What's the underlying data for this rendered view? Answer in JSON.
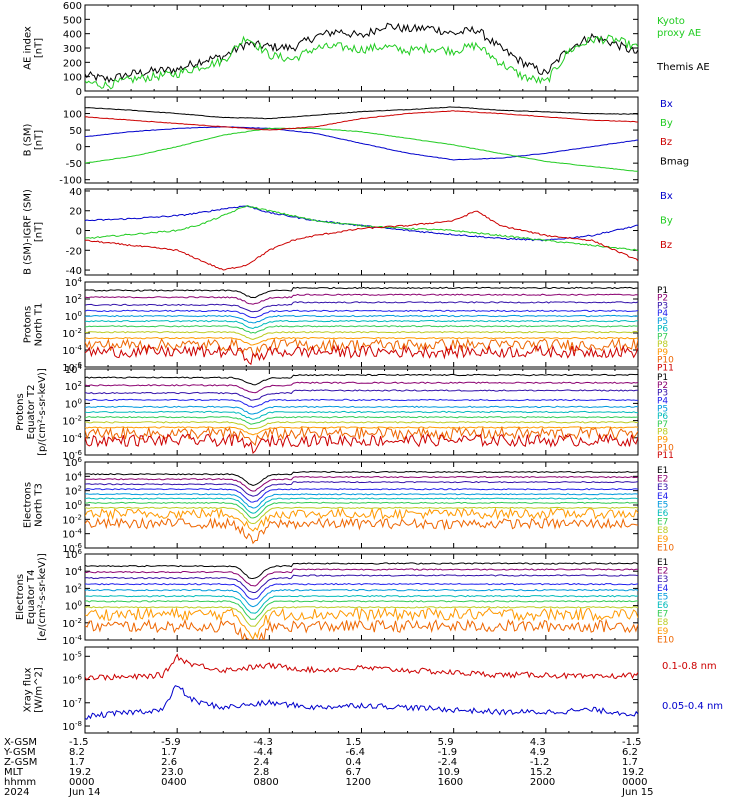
{
  "colors": {
    "black": "#000000",
    "green": "#22cc22",
    "blue": "#0000cc",
    "red": "#cc0000",
    "ch": [
      "#000000",
      "#8b0070",
      "#3311aa",
      "#2222ee",
      "#0099dd",
      "#00bbbb",
      "#33cc55",
      "#bbcc22",
      "#ff9900",
      "#ee6600",
      "#cc0000",
      "#880000"
    ]
  },
  "chart_data": [
    {
      "type": "line",
      "panel": "ae",
      "ylabel": [
        "AE index",
        "[nT]"
      ],
      "ylim": [
        0,
        600
      ],
      "ticks": [
        "0",
        "100",
        "200",
        "300",
        "400",
        "500",
        "600"
      ],
      "legend": [
        {
          "text": "Kyoto",
          "color": "green"
        },
        {
          "text": "proxy AE",
          "color": "green"
        },
        {
          "text": "Themis AE",
          "color": "black"
        }
      ],
      "series": [
        {
          "color": "black",
          "x": [
            0,
            1,
            2,
            3,
            4,
            5,
            6,
            7,
            8,
            9,
            10,
            11,
            12,
            13,
            14,
            15,
            16,
            17,
            18,
            19,
            20,
            21,
            22,
            23,
            24
          ],
          "y": [
            110,
            80,
            120,
            140,
            150,
            210,
            240,
            330,
            310,
            300,
            380,
            420,
            380,
            460,
            430,
            440,
            400,
            430,
            300,
            200,
            120,
            300,
            380,
            330,
            260
          ]
        },
        {
          "color": "green",
          "x": [
            0,
            1,
            2,
            3,
            4,
            5,
            6,
            7,
            8,
            9,
            10,
            11,
            12,
            13,
            14,
            15,
            16,
            17,
            18,
            19,
            20,
            21,
            22,
            23,
            24
          ],
          "y": [
            60,
            40,
            80,
            100,
            120,
            170,
            210,
            380,
            250,
            220,
            300,
            310,
            290,
            310,
            280,
            300,
            280,
            320,
            200,
            100,
            60,
            280,
            360,
            360,
            300
          ]
        }
      ]
    },
    {
      "type": "line",
      "panel": "bsm",
      "ylabel": [
        "B (SM)",
        "[nT]"
      ],
      "ylim": [
        -110,
        150
      ],
      "tickvals": [
        -100,
        -50,
        0,
        50,
        100
      ],
      "ticks": [
        "-100",
        "-50",
        "0",
        "50",
        "100"
      ],
      "legend": [
        {
          "text": "Bx",
          "color": "blue"
        },
        {
          "text": "By",
          "color": "green"
        },
        {
          "text": "Bz",
          "color": "red"
        },
        {
          "text": "Bmag",
          "color": "black"
        }
      ],
      "series": [
        {
          "color": "black",
          "x": [
            0,
            2,
            4,
            6,
            8,
            10,
            12,
            14,
            16,
            18,
            20,
            22,
            24
          ],
          "y": [
            118,
            110,
            100,
            88,
            85,
            95,
            106,
            112,
            120,
            110,
            105,
            100,
            98
          ]
        },
        {
          "color": "blue",
          "x": [
            0,
            2,
            4,
            6,
            8,
            10,
            12,
            14,
            16,
            18,
            20,
            22,
            24
          ],
          "y": [
            30,
            45,
            55,
            60,
            55,
            40,
            10,
            -20,
            -40,
            -35,
            -20,
            0,
            20
          ]
        },
        {
          "color": "green",
          "x": [
            0,
            2,
            4,
            6,
            8,
            10,
            12,
            14,
            16,
            18,
            20,
            22,
            24
          ],
          "y": [
            -50,
            -30,
            0,
            35,
            55,
            55,
            45,
            25,
            5,
            -20,
            -45,
            -60,
            -75
          ]
        },
        {
          "color": "red",
          "x": [
            0,
            2,
            4,
            6,
            8,
            10,
            12,
            14,
            16,
            18,
            20,
            22,
            24
          ],
          "y": [
            90,
            80,
            70,
            60,
            50,
            60,
            85,
            100,
            108,
            100,
            90,
            80,
            75
          ]
        }
      ]
    },
    {
      "type": "line",
      "panel": "bresid",
      "ylabel": [
        "B (SM)-IGRF (SM)",
        "[nT]"
      ],
      "ylim": [
        -45,
        42
      ],
      "tickvals": [
        -40,
        -20,
        0,
        20,
        40
      ],
      "ticks": [
        "-40",
        "-20",
        "0",
        "20",
        "40"
      ],
      "legend": [
        {
          "text": "Bx",
          "color": "blue"
        },
        {
          "text": "By",
          "color": "green"
        },
        {
          "text": "Bz",
          "color": "red"
        }
      ],
      "series": [
        {
          "color": "blue",
          "x": [
            0,
            2,
            4,
            5,
            6,
            7,
            8,
            9,
            10,
            12,
            14,
            16,
            18,
            20,
            22,
            24
          ],
          "y": [
            10,
            12,
            15,
            18,
            22,
            25,
            18,
            14,
            10,
            5,
            0,
            -4,
            -8,
            -10,
            -5,
            5
          ]
        },
        {
          "color": "green",
          "x": [
            0,
            2,
            4,
            5,
            6,
            7,
            8,
            9,
            10,
            12,
            14,
            16,
            18,
            20,
            22,
            24
          ],
          "y": [
            -8,
            -4,
            0,
            6,
            15,
            25,
            20,
            15,
            10,
            5,
            2,
            0,
            -5,
            -10,
            -15,
            -20
          ]
        },
        {
          "color": "red",
          "x": [
            0,
            2,
            4,
            5,
            6,
            7,
            8,
            9,
            10,
            12,
            14,
            16,
            17,
            18,
            20,
            22,
            24
          ],
          "y": [
            -10,
            -15,
            -20,
            -30,
            -40,
            -35,
            -20,
            -10,
            -5,
            2,
            5,
            10,
            20,
            5,
            -5,
            -10,
            -30
          ]
        }
      ]
    },
    {
      "type": "line",
      "panel": "ptn",
      "ylabel": [
        "Protons",
        "North T1"
      ],
      "ylog": [
        -6,
        4
      ],
      "ticks": [
        "10^4",
        "10^2",
        "10^0",
        "10^-2",
        "10^-4",
        "10^-6"
      ],
      "channels": [
        "P1",
        "P2",
        "P3",
        "P4",
        "P5",
        "P6",
        "P7",
        "P8",
        "P9",
        "P10",
        "P11"
      ],
      "levels": [
        3,
        2.2,
        1.3,
        0.6,
        0,
        -0.6,
        -1.2,
        -1.9,
        -2.6,
        -3.4,
        -4.2
      ]
    },
    {
      "type": "line",
      "panel": "pte",
      "ylabel": [
        "Protons",
        "Equator T2",
        "[p/(cm²-s-sr-keV)]"
      ],
      "ylog": [
        -6,
        4
      ],
      "ticks": [
        "10^4",
        "10^2",
        "10^0",
        "10^-2",
        "10^-4",
        "10^-6"
      ],
      "channels": [
        "P1",
        "P2",
        "P3",
        "P4",
        "P5",
        "P6",
        "P7",
        "P8",
        "P9",
        "P10",
        "P11"
      ],
      "levels": [
        3,
        2.1,
        1.2,
        0.4,
        -0.4,
        -1.0,
        -1.6,
        -2.2,
        -2.8,
        -3.5,
        -4.3
      ]
    },
    {
      "type": "line",
      "panel": "etn",
      "ylabel": [
        "Electrons",
        "North T3"
      ],
      "ylog": [
        -6,
        6
      ],
      "ticks": [
        "10^6",
        "10^4",
        "10^2",
        "10^0",
        "10^-2",
        "10^-4",
        "10^-6"
      ],
      "channels": [
        "E1",
        "E2",
        "E3",
        "E4",
        "E5",
        "E6",
        "E7",
        "E8",
        "E9",
        "E10"
      ],
      "levels": [
        4.3,
        3.6,
        2.9,
        2.2,
        1.5,
        0.9,
        0.3,
        -0.4,
        -1.2,
        -2.6
      ]
    },
    {
      "type": "line",
      "panel": "ete",
      "ylabel": [
        "Electrons",
        "Equator T4",
        "[e/(cm²-s-sr-keV)]"
      ],
      "ylog": [
        -4,
        6
      ],
      "ticks": [
        "10^6",
        "10^4",
        "10^2",
        "10^0",
        "10^-2",
        "10^-4"
      ],
      "channels": [
        "E1",
        "E2",
        "E3",
        "E4",
        "E5",
        "E6",
        "E7",
        "E8",
        "E9",
        "E10"
      ],
      "levels": [
        4.6,
        3.9,
        3.2,
        2.5,
        1.8,
        1.1,
        0.5,
        -0.2,
        -1.0,
        -2.4
      ]
    },
    {
      "type": "line",
      "panel": "xray",
      "ylabel": [
        "Xray flux",
        "[W/m^2]"
      ],
      "ylog": [
        -8.3,
        -4.6
      ],
      "ticks": [
        "10^-5",
        "10^-6",
        "10^-7",
        "10^-8"
      ],
      "legend": [
        {
          "text": "0.1-0.8 nm",
          "color": "red"
        },
        {
          "text": "0.05-0.4 nm",
          "color": "blue"
        }
      ],
      "series": [
        {
          "color": "red",
          "x": [
            0,
            2,
            3.4,
            4,
            4.5,
            5,
            6,
            8,
            10,
            12,
            14,
            16,
            18,
            20,
            22,
            24
          ],
          "y": [
            -5.9,
            -5.9,
            -5.8,
            -5.0,
            -5.3,
            -5.4,
            -5.6,
            -5.4,
            -5.6,
            -5.5,
            -5.6,
            -5.7,
            -5.8,
            -5.8,
            -5.9,
            -5.8
          ]
        },
        {
          "color": "blue",
          "x": [
            0,
            2,
            3.4,
            4,
            4.5,
            5,
            6,
            8,
            10,
            12,
            14,
            16,
            18,
            20,
            22,
            24
          ],
          "y": [
            -7.6,
            -7.4,
            -7.3,
            -6.2,
            -6.8,
            -7.0,
            -7.2,
            -7.0,
            -7.2,
            -7.1,
            -7.2,
            -7.3,
            -7.4,
            -7.4,
            -7.3,
            -7.5
          ]
        }
      ]
    }
  ],
  "xaxis": {
    "row_labels": [
      "X-GSM",
      "Y-GSM",
      "Z-GSM",
      "MLT",
      "hhmm",
      "2024"
    ],
    "columns": [
      [
        "-1.5",
        "8.2",
        "1.7",
        "19.2",
        "0000",
        "Jun 14"
      ],
      [
        "-5.9",
        "1.7",
        "2.6",
        "23.0",
        "0400",
        ""
      ],
      [
        "-4.3",
        "-4.4",
        "2.4",
        "2.8",
        "0800",
        ""
      ],
      [
        "1.5",
        "-6.4",
        "0.4",
        "6.7",
        "1200",
        ""
      ],
      [
        "5.9",
        "-1.9",
        "-2.4",
        "10.9",
        "1600",
        ""
      ],
      [
        "4.3",
        "4.9",
        "-1.2",
        "15.2",
        "2000",
        ""
      ],
      [
        "-1.5",
        "6.2",
        "1.7",
        "19.2",
        "0000",
        "Jun 15"
      ]
    ]
  }
}
